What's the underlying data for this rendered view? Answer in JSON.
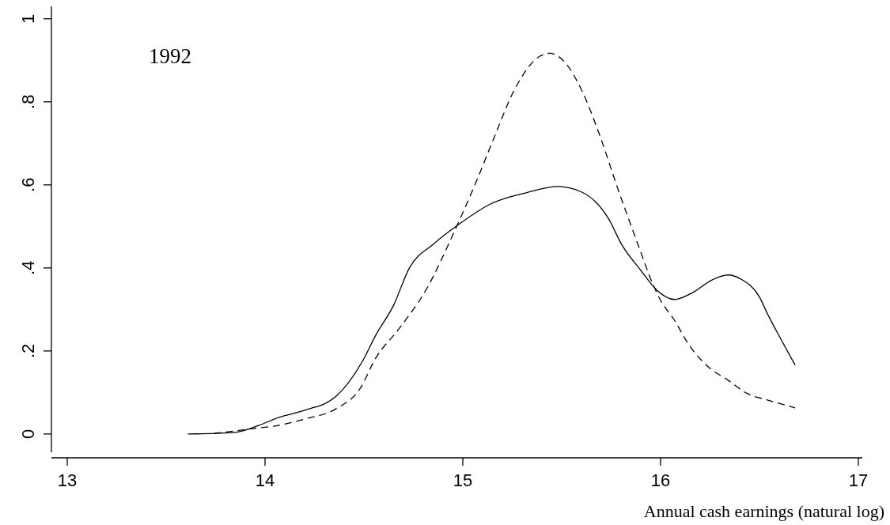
{
  "chart_data": {
    "type": "line",
    "title": "1992",
    "xlabel": "Annual cash earnings (natural log)",
    "xlim": [
      12.92,
      17.02
    ],
    "ylim": [
      -0.044,
      1.03
    ],
    "xticks": [
      13,
      14,
      15,
      16,
      17
    ],
    "yticks": [
      0,
      {
        "value": 0.2,
        "label": ".2"
      },
      {
        "value": 0.4,
        "label": ".4"
      },
      {
        "value": 0.6,
        "label": ".6"
      },
      {
        "value": 0.8,
        "label": ".8"
      },
      1
    ],
    "marker": "none",
    "series": [
      {
        "color": "#000000",
        "line_style": "solid",
        "x": [
          13.61,
          13.85,
          13.97,
          14.07,
          14.2,
          14.36,
          14.49,
          14.56,
          14.65,
          14.73,
          14.85,
          14.98,
          15.14,
          15.32,
          15.48,
          15.6,
          15.74,
          15.8,
          15.9,
          15.98,
          16.07,
          16.16,
          16.26,
          16.34,
          16.41,
          16.5,
          16.54,
          16.61,
          16.68
        ],
        "values": [
          0,
          0.004,
          0.021,
          0.04,
          0.057,
          0.091,
          0.173,
          0.238,
          0.31,
          0.4,
          0.457,
          0.505,
          0.554,
          0.581,
          0.596,
          0.583,
          0.516,
          0.459,
          0.394,
          0.347,
          0.324,
          0.34,
          0.371,
          0.383,
          0.372,
          0.33,
          0.29,
          0.227,
          0.166
        ]
      },
      {
        "color": "#000000",
        "line_style": "dashed",
        "x": [
          13.72,
          13.94,
          14.07,
          14.2,
          14.36,
          14.48,
          14.56,
          14.68,
          14.82,
          14.95,
          15.07,
          15.16,
          15.26,
          15.39,
          15.44,
          15.52,
          15.6,
          15.7,
          15.78,
          15.89,
          15.96,
          16.0,
          16.07,
          16.14,
          16.24,
          16.34,
          16.44,
          16.54,
          16.68
        ],
        "values": [
          0,
          0.013,
          0.021,
          0.036,
          0.061,
          0.109,
          0.183,
          0.255,
          0.352,
          0.48,
          0.61,
          0.716,
          0.828,
          0.91,
          0.917,
          0.893,
          0.829,
          0.709,
          0.596,
          0.451,
          0.362,
          0.322,
          0.274,
          0.217,
          0.162,
          0.13,
          0.097,
          0.082,
          0.063
        ]
      }
    ]
  }
}
